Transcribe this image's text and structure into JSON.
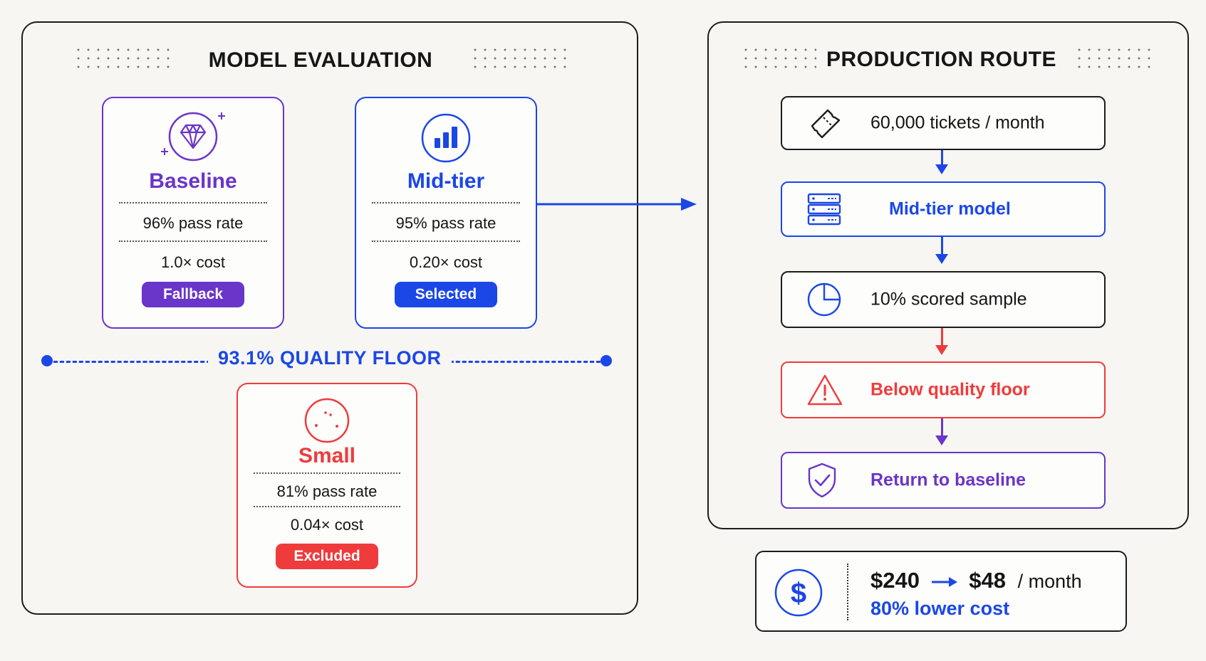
{
  "evaluation": {
    "title": "MODEL EVALUATION",
    "models": [
      {
        "name": "Baseline",
        "pass_rate": "96% pass rate",
        "cost": "1.0× cost",
        "status": "Fallback",
        "color": "#6a35c9",
        "icon": "diamond-icon"
      },
      {
        "name": "Mid-tier",
        "pass_rate": "95% pass rate",
        "cost": "0.20× cost",
        "status": "Selected",
        "color": "#1b47e6",
        "icon": "bar-chart-icon"
      },
      {
        "name": "Small",
        "pass_rate": "81% pass rate",
        "cost": "0.04× cost",
        "status": "Excluded",
        "color": "#ef3b3b",
        "icon": "dotted-circle-icon"
      }
    ],
    "quality_floor": "93.1% QUALITY FLOOR"
  },
  "route": {
    "title": "PRODUCTION ROUTE",
    "steps": [
      {
        "label": "60,000 tickets / month",
        "icon": "ticket-icon",
        "color": "#1c1c1c"
      },
      {
        "label": "Mid-tier model",
        "icon": "server-icon",
        "color": "#1b47e6"
      },
      {
        "label": "10% scored sample",
        "icon": "pie-clock-icon",
        "color": "#1c1c1c"
      },
      {
        "label": "Below quality floor",
        "icon": "warning-icon",
        "color": "#ef3b3b"
      },
      {
        "label": "Return to baseline",
        "icon": "shield-check-icon",
        "color": "#6a35c9"
      }
    ]
  },
  "savings": {
    "from": "$240",
    "to": "$48",
    "per": "/ month",
    "summary": "80% lower cost",
    "icon": "dollar-icon"
  },
  "colors": {
    "blue": "#1b47e6",
    "purple": "#6a35c9",
    "red": "#ef3b3b",
    "ink": "#1c1c1c"
  }
}
